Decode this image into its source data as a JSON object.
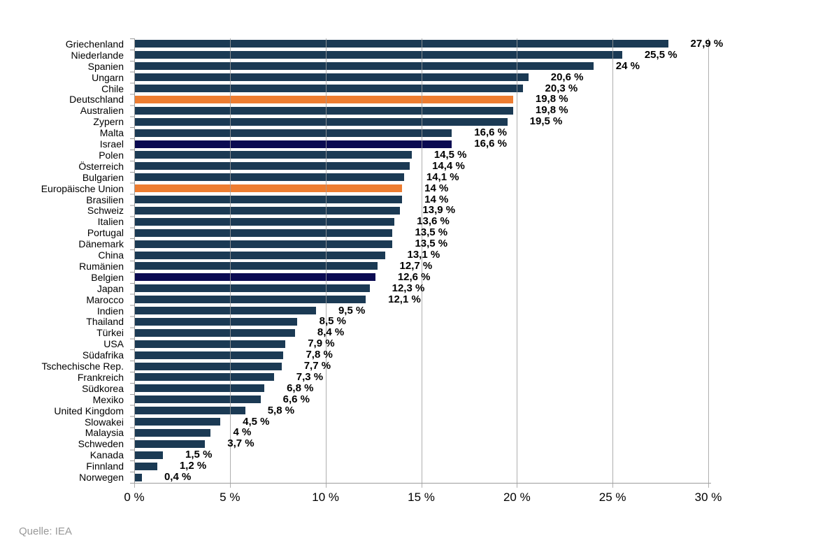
{
  "source": {
    "text": "Quelle: IEA"
  },
  "colors": {
    "bar_default": "#1B3A54",
    "bar_orange_highlight": "#ED7D31",
    "bar_dark_highlight": "#0B0B52",
    "gridline": "#9E9E9E",
    "axis": "#9C9C9C",
    "label_text": "#000000",
    "source_text": "#999999"
  },
  "chart_data": {
    "type": "bar",
    "orientation": "horizontal",
    "title": "",
    "xlabel": "",
    "ylabel": "",
    "xlim": [
      0,
      30
    ],
    "x_tick_labels": [
      "0 %",
      "5 %",
      "10 %",
      "15 %",
      "20 %",
      "25 %",
      "30 %"
    ],
    "grid": true,
    "legend": false,
    "items": [
      {
        "label": "Griechenland",
        "value": 27.9,
        "display": "27,9 %",
        "variant": "default"
      },
      {
        "label": "Niederlande",
        "value": 25.5,
        "display": "25,5 %",
        "variant": "default"
      },
      {
        "label": "Spanien",
        "value": 24,
        "display": "24 %",
        "variant": "default"
      },
      {
        "label": "Ungarn",
        "value": 20.6,
        "display": "20,6 %",
        "variant": "default"
      },
      {
        "label": "Chile",
        "value": 20.3,
        "display": "20,3 %",
        "variant": "default"
      },
      {
        "label": "Deutschland",
        "value": 19.8,
        "display": "19,8 %",
        "variant": "orange-highlight"
      },
      {
        "label": "Australien",
        "value": 19.8,
        "display": "19,8 %",
        "variant": "default"
      },
      {
        "label": "Zypern",
        "value": 19.5,
        "display": "19,5 %",
        "variant": "default"
      },
      {
        "label": "Malta",
        "value": 16.6,
        "display": "16,6 %",
        "variant": "default"
      },
      {
        "label": "Israel",
        "value": 16.6,
        "display": "16,6 %",
        "variant": "dark-highlight"
      },
      {
        "label": "Polen",
        "value": 14.5,
        "display": "14,5 %",
        "variant": "default"
      },
      {
        "label": "Österreich",
        "value": 14.4,
        "display": "14,4 %",
        "variant": "default"
      },
      {
        "label": "Bulgarien",
        "value": 14.1,
        "display": "14,1 %",
        "variant": "default"
      },
      {
        "label": "Europäische Union",
        "value": 14,
        "display": "14 %",
        "variant": "orange-highlight"
      },
      {
        "label": "Brasilien",
        "value": 14,
        "display": "14 %",
        "variant": "default"
      },
      {
        "label": "Schweiz",
        "value": 13.9,
        "display": "13,9 %",
        "variant": "default"
      },
      {
        "label": "Italien",
        "value": 13.6,
        "display": "13,6 %",
        "variant": "default"
      },
      {
        "label": "Portugal",
        "value": 13.5,
        "display": "13,5 %",
        "variant": "default"
      },
      {
        "label": "Dänemark",
        "value": 13.5,
        "display": "13,5 %",
        "variant": "default"
      },
      {
        "label": "China",
        "value": 13.1,
        "display": "13,1 %",
        "variant": "default"
      },
      {
        "label": "Rumänien",
        "value": 12.7,
        "display": "12,7 %",
        "variant": "default"
      },
      {
        "label": "Belgien",
        "value": 12.6,
        "display": "12,6 %",
        "variant": "dark-highlight"
      },
      {
        "label": "Japan",
        "value": 12.3,
        "display": "12,3 %",
        "variant": "default"
      },
      {
        "label": "Marocco",
        "value": 12.1,
        "display": "12,1 %",
        "variant": "default"
      },
      {
        "label": "Indien",
        "value": 9.5,
        "display": "9,5 %",
        "variant": "default"
      },
      {
        "label": "Thailand",
        "value": 8.5,
        "display": "8,5 %",
        "variant": "default"
      },
      {
        "label": "Türkei",
        "value": 8.4,
        "display": "8,4 %",
        "variant": "default"
      },
      {
        "label": "USA",
        "value": 7.9,
        "display": "7,9 %",
        "variant": "default"
      },
      {
        "label": "Südafrika",
        "value": 7.8,
        "display": "7,8 %",
        "variant": "default"
      },
      {
        "label": "Tschechische Rep.",
        "value": 7.7,
        "display": "7,7 %",
        "variant": "default"
      },
      {
        "label": "Frankreich",
        "value": 7.3,
        "display": "7,3 %",
        "variant": "default"
      },
      {
        "label": "Südkorea",
        "value": 6.8,
        "display": "6,8 %",
        "variant": "default"
      },
      {
        "label": "Mexiko",
        "value": 6.6,
        "display": "6,6 %",
        "variant": "default"
      },
      {
        "label": "United Kingdom",
        "value": 5.8,
        "display": "5,8 %",
        "variant": "default"
      },
      {
        "label": "Slowakei",
        "value": 4.5,
        "display": "4,5 %",
        "variant": "default"
      },
      {
        "label": "Malaysia",
        "value": 4,
        "display": "4 %",
        "variant": "default"
      },
      {
        "label": "Schweden",
        "value": 3.7,
        "display": "3,7 %",
        "variant": "default"
      },
      {
        "label": "Kanada",
        "value": 1.5,
        "display": "1,5 %",
        "variant": "default"
      },
      {
        "label": "Finnland",
        "value": 1.2,
        "display": "1,2 %",
        "variant": "default"
      },
      {
        "label": "Norwegen",
        "value": 0.4,
        "display": "0,4 %",
        "variant": "default"
      }
    ]
  }
}
